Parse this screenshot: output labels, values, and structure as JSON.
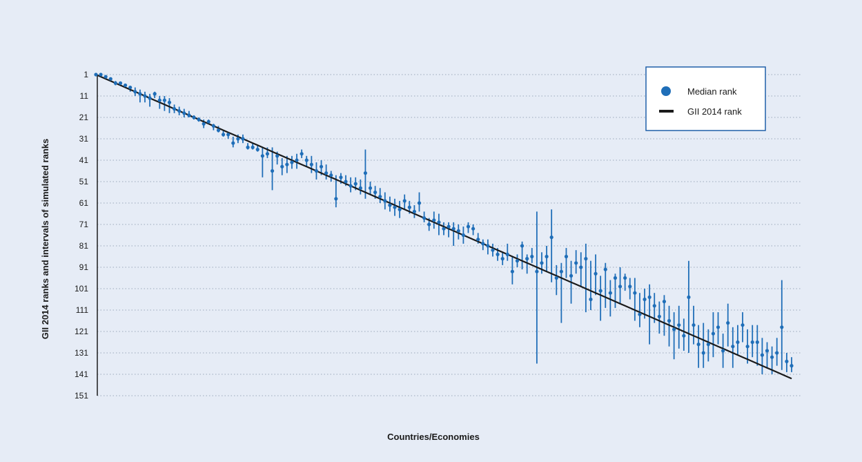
{
  "colors": {
    "background": "#e6ecf6",
    "marker": "#1f6eb8",
    "rank_line": "#1a1a1a",
    "grid": "#9aa7bb"
  },
  "chart_data": {
    "type": "scatter",
    "title": "",
    "xlabel": "Countries/Economies",
    "ylabel": "GII 2014 ranks and intervals of simulated ranks",
    "y_axis": {
      "reversed": true,
      "ylim": [
        1,
        151
      ],
      "ticks": [
        1,
        11,
        21,
        31,
        41,
        51,
        61,
        71,
        81,
        91,
        101,
        111,
        121,
        131,
        141,
        151
      ]
    },
    "x_axis": {
      "ticks": [],
      "n_points": 143
    },
    "grid": "horizontal dotted",
    "legend": {
      "placement": "top-right",
      "entries": [
        {
          "label": "Median rank",
          "symbol": "dot"
        },
        {
          "label": "GII 2014 rank",
          "symbol": "line"
        }
      ]
    },
    "series": [
      {
        "name": "Median rank",
        "description": "median simulated rank per country, with simulated rank interval [low, high]",
        "points": [
          [
            1,
            1,
            1
          ],
          [
            1,
            1,
            2
          ],
          [
            2,
            2,
            3
          ],
          [
            3,
            3,
            4
          ],
          [
            5,
            4,
            6
          ],
          [
            5,
            5,
            6
          ],
          [
            6,
            6,
            7
          ],
          [
            7,
            7,
            9
          ],
          [
            9,
            7,
            11
          ],
          [
            10,
            8,
            14
          ],
          [
            11,
            9,
            14
          ],
          [
            12,
            10,
            16
          ],
          [
            10,
            9,
            12
          ],
          [
            13,
            11,
            17
          ],
          [
            13,
            11,
            18
          ],
          [
            14,
            12,
            19
          ],
          [
            17,
            15,
            19
          ],
          [
            18,
            16,
            20
          ],
          [
            19,
            17,
            21
          ],
          [
            20,
            18,
            21
          ],
          [
            21,
            20,
            22
          ],
          [
            22,
            21,
            23
          ],
          [
            24,
            22,
            26
          ],
          [
            23,
            22,
            24
          ],
          [
            25,
            24,
            27
          ],
          [
            27,
            25,
            28
          ],
          [
            29,
            27,
            30
          ],
          [
            29,
            28,
            31
          ],
          [
            33,
            30,
            35
          ],
          [
            31,
            29,
            33
          ],
          [
            31,
            29,
            33
          ],
          [
            35,
            33,
            36
          ],
          [
            35,
            33,
            36
          ],
          [
            36,
            34,
            37
          ],
          [
            39,
            35,
            49
          ],
          [
            38,
            35,
            40
          ],
          [
            46,
            35,
            55
          ],
          [
            39,
            37,
            43
          ],
          [
            44,
            40,
            48
          ],
          [
            43,
            39,
            47
          ],
          [
            42,
            39,
            45
          ],
          [
            41,
            38,
            45
          ],
          [
            38,
            36,
            40
          ],
          [
            41,
            39,
            44
          ],
          [
            43,
            39,
            47
          ],
          [
            46,
            42,
            50
          ],
          [
            44,
            41,
            48
          ],
          [
            47,
            43,
            50
          ],
          [
            48,
            46,
            51
          ],
          [
            59,
            48,
            63
          ],
          [
            49,
            47,
            52
          ],
          [
            51,
            48,
            53
          ],
          [
            53,
            49,
            56
          ],
          [
            52,
            49,
            55
          ],
          [
            54,
            50,
            57
          ],
          [
            47,
            36,
            59
          ],
          [
            54,
            51,
            57
          ],
          [
            56,
            53,
            59
          ],
          [
            58,
            54,
            61
          ],
          [
            60,
            56,
            64
          ],
          [
            62,
            58,
            65
          ],
          [
            63,
            59,
            67
          ],
          [
            64,
            60,
            68
          ],
          [
            60,
            57,
            64
          ],
          [
            63,
            60,
            66
          ],
          [
            65,
            62,
            68
          ],
          [
            61,
            56,
            65
          ],
          [
            68,
            65,
            70
          ],
          [
            71,
            68,
            74
          ],
          [
            69,
            65,
            73
          ],
          [
            70,
            66,
            76
          ],
          [
            73,
            70,
            76
          ],
          [
            72,
            70,
            77
          ],
          [
            73,
            70,
            81
          ],
          [
            74,
            71,
            78
          ],
          [
            76,
            72,
            80
          ],
          [
            72,
            70,
            75
          ],
          [
            73,
            71,
            76
          ],
          [
            78,
            75,
            80
          ],
          [
            80,
            78,
            83
          ],
          [
            81,
            78,
            85
          ],
          [
            83,
            80,
            86
          ],
          [
            85,
            82,
            88
          ],
          [
            87,
            84,
            90
          ],
          [
            85,
            80,
            88
          ],
          [
            93,
            86,
            99
          ],
          [
            88,
            85,
            91
          ],
          [
            81,
            79,
            92
          ],
          [
            87,
            85,
            94
          ],
          [
            86,
            82,
            89
          ],
          [
            93,
            65,
            136
          ],
          [
            89,
            84,
            94
          ],
          [
            86,
            81,
            93
          ],
          [
            77,
            64,
            98
          ],
          [
            96,
            90,
            104
          ],
          [
            93,
            89,
            117
          ],
          [
            86,
            82,
            96
          ],
          [
            95,
            88,
            108
          ],
          [
            89,
            83,
            94
          ],
          [
            91,
            84,
            100
          ],
          [
            87,
            80,
            112
          ],
          [
            106,
            88,
            111
          ],
          [
            94,
            85,
            104
          ],
          [
            102,
            95,
            116
          ],
          [
            92,
            89,
            110
          ],
          [
            103,
            97,
            114
          ],
          [
            96,
            94,
            110
          ],
          [
            100,
            91,
            108
          ],
          [
            96,
            94,
            102
          ],
          [
            100,
            96,
            106
          ],
          [
            103,
            96,
            116
          ],
          [
            113,
            103,
            119
          ],
          [
            106,
            101,
            115
          ],
          [
            105,
            99,
            127
          ],
          [
            109,
            103,
            117
          ],
          [
            114,
            107,
            122
          ],
          [
            107,
            104,
            123
          ],
          [
            116,
            109,
            128
          ],
          [
            120,
            112,
            134
          ],
          [
            118,
            109,
            129
          ],
          [
            123,
            115,
            130
          ],
          [
            105,
            88,
            131
          ],
          [
            118,
            109,
            127
          ],
          [
            127,
            118,
            138
          ],
          [
            131,
            117,
            138
          ],
          [
            127,
            120,
            135
          ],
          [
            122,
            112,
            133
          ],
          [
            119,
            112,
            127
          ],
          [
            130,
            122,
            138
          ],
          [
            117,
            108,
            128
          ],
          [
            128,
            119,
            138
          ],
          [
            126,
            118,
            132
          ],
          [
            118,
            112,
            126
          ],
          [
            128,
            120,
            136
          ],
          [
            126,
            118,
            133
          ],
          [
            126,
            118,
            137
          ],
          [
            132,
            124,
            141
          ],
          [
            130,
            126,
            138
          ],
          [
            133,
            128,
            141
          ],
          [
            131,
            124,
            137
          ],
          [
            119,
            97,
            139
          ],
          [
            135,
            131,
            140
          ],
          [
            137,
            133,
            140
          ]
        ]
      },
      {
        "name": "GII 2014 rank",
        "description": "official rank 1 to 143, monotonic line",
        "start": 1,
        "end": 143
      }
    ]
  }
}
